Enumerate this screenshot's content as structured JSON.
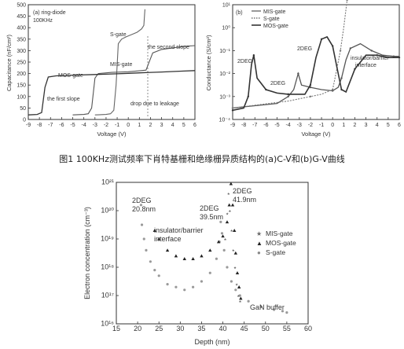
{
  "caption": "图1 100KHz测试频率下肖特基栅和绝缘栅异质结构的(a)C-V和(b)G-V曲线",
  "chart_data": [
    {
      "id": "a",
      "type": "line",
      "panel_label": "(a) ring-diode",
      "panel_sublabel": "100KHz",
      "xlabel": "Voltage (V)",
      "ylabel": "Capacitance (nF/cm²)",
      "xlim": [
        -9,
        6
      ],
      "ylim": [
        0,
        500
      ],
      "x_ticks": [
        "-9",
        "-8",
        "-7",
        "-6",
        "-5",
        "-4",
        "-3",
        "-2",
        "-1",
        "0",
        "1",
        "2",
        "3",
        "4",
        "5",
        "6"
      ],
      "y_ticks": [
        "0",
        "50",
        "100",
        "150",
        "200",
        "250",
        "300",
        "350",
        "400",
        "450",
        "500"
      ],
      "series": [
        {
          "name": "S-gate",
          "points": [
            [
              -3.0,
              20
            ],
            [
              -2.0,
              22
            ],
            [
              -1.6,
              25
            ],
            [
              -1.3,
              40
            ],
            [
              -1.1,
              150
            ],
            [
              -0.9,
              330
            ],
            [
              -0.6,
              350
            ],
            [
              -0.2,
              360
            ],
            [
              0.3,
              370
            ],
            [
              0.8,
              380
            ],
            [
              1.2,
              395
            ],
            [
              1.4,
              410
            ],
            [
              1.5,
              480
            ]
          ]
        },
        {
          "name": "MIS-gate",
          "points": [
            [
              -5.0,
              20
            ],
            [
              -4.0,
              22
            ],
            [
              -3.6,
              25
            ],
            [
              -3.3,
              50
            ],
            [
              -3.0,
              180
            ],
            [
              -2.7,
              200
            ],
            [
              -1.5,
              205
            ],
            [
              0,
              208
            ],
            [
              1.0,
              212
            ],
            [
              1.6,
              215
            ],
            [
              1.8,
              240
            ],
            [
              2.2,
              290
            ],
            [
              3,
              305
            ],
            [
              4,
              312
            ],
            [
              5,
              318
            ],
            [
              6,
              322
            ]
          ]
        },
        {
          "name": "MOS-gate",
          "points": [
            [
              -9,
              20
            ],
            [
              -8.2,
              22
            ],
            [
              -7.8,
              30
            ],
            [
              -7.5,
              140
            ],
            [
              -7.2,
              185
            ],
            [
              -6.5,
              190
            ],
            [
              -5,
              193
            ],
            [
              -3,
              196
            ],
            [
              -1,
              199
            ],
            [
              0,
              201
            ],
            [
              1,
              203
            ],
            [
              2,
              205
            ],
            [
              3,
              207
            ],
            [
              4,
              209
            ],
            [
              5,
              211
            ],
            [
              6,
              213
            ]
          ]
        }
      ],
      "annotations": [
        "S-gate",
        "MIS-gate",
        "MOS-gate",
        "the second slope",
        "the first slope",
        "drop due to leakage"
      ]
    },
    {
      "id": "b",
      "type": "line",
      "panel_label": "(b)",
      "xlabel": "Voltage (V)",
      "ylabel": "Conductance (S/cm²)",
      "yscale": "log",
      "xlim": [
        -9,
        6
      ],
      "ylim_exp": [
        -4,
        1
      ],
      "x_ticks": [
        "-9",
        "-8",
        "-7",
        "-6",
        "-5",
        "-4",
        "-3",
        "-2",
        "-1",
        "0",
        "1",
        "2",
        "3",
        "4",
        "5",
        "6"
      ],
      "y_ticks": [
        "10⁻⁴",
        "10⁻³",
        "10⁻²",
        "10⁻¹",
        "10⁰",
        "10¹"
      ],
      "legend": [
        "MIS-gate",
        "S-gate",
        "MOS-gate"
      ],
      "legend_position": "top-left",
      "series": [
        {
          "name": "MIS-gate",
          "points": [
            [
              -9,
              -3.5
            ],
            [
              -5,
              -3.3
            ],
            [
              -4,
              -3.0
            ],
            [
              -3.5,
              -2.7
            ],
            [
              -3.1,
              -2.0
            ],
            [
              -2.8,
              -2.5
            ],
            [
              -2,
              -2.6
            ],
            [
              -1,
              -2.7
            ],
            [
              0,
              -2.75
            ],
            [
              0.5,
              -2.6
            ],
            [
              0.8,
              -2.2
            ],
            [
              1.2,
              -1.4
            ],
            [
              1.6,
              -0.9
            ],
            [
              2.5,
              -0.7
            ],
            [
              3.5,
              -1.0
            ],
            [
              4.5,
              -1.2
            ],
            [
              5.5,
              -1.25
            ],
            [
              6,
              -1.25
            ]
          ]
        },
        {
          "name": "S-gate",
          "points": [
            [
              -9,
              -3.5
            ],
            [
              -4,
              -3.2
            ],
            [
              -2,
              -3.0
            ],
            [
              -1,
              -2.9
            ],
            [
              0,
              -2.7
            ],
            [
              0.3,
              -2.0
            ],
            [
              0.7,
              -1.0
            ],
            [
              1.0,
              0.0
            ],
            [
              1.3,
              1.2
            ],
            [
              1.5,
              1.8
            ]
          ]
        },
        {
          "name": "MOS-gate",
          "points": [
            [
              -9,
              -3.6
            ],
            [
              -8,
              -3.5
            ],
            [
              -7.6,
              -3.0
            ],
            [
              -7.3,
              -1.6
            ],
            [
              -7.1,
              -1.2
            ],
            [
              -6.8,
              -2.2
            ],
            [
              -6,
              -2.7
            ],
            [
              -5,
              -2.85
            ],
            [
              -4,
              -2.9
            ],
            [
              -2.5,
              -2.9
            ],
            [
              -2,
              -2.5
            ],
            [
              -1.5,
              -1.3
            ],
            [
              -1,
              -0.5
            ],
            [
              -0.5,
              -0.4
            ],
            [
              0,
              -0.8
            ],
            [
              0.5,
              -2.0
            ],
            [
              0.8,
              -2.7
            ],
            [
              1.2,
              -2.8
            ],
            [
              2,
              -1.8
            ],
            [
              3,
              -1.2
            ],
            [
              4,
              -1.2
            ],
            [
              5,
              -1.3
            ],
            [
              6,
              -1.3
            ]
          ]
        }
      ],
      "annotations": [
        "2DEG",
        "2DEG",
        "2DEG",
        "insulator/barrier",
        "interface"
      ]
    },
    {
      "id": "c",
      "type": "scatter",
      "xlabel": "Depth (nm)",
      "ylabel": "Electron concentration (cm⁻³)",
      "yscale": "log",
      "xlim": [
        15,
        60
      ],
      "ylim_exp": [
        16,
        21
      ],
      "x_ticks": [
        "15",
        "20",
        "25",
        "30",
        "35",
        "40",
        "45",
        "50",
        "55",
        "60"
      ],
      "y_ticks": [
        "10¹⁶",
        "10¹⁷",
        "10¹⁸",
        "10¹⁹",
        "10²⁰",
        "10²¹"
      ],
      "legend": [
        "MIS-gate",
        "MOS-gate",
        "S-gate"
      ],
      "legend_position": "right",
      "series": [
        {
          "name": "MIS-gate",
          "points": [
            [
              40.5,
              19.0
            ],
            [
              41,
              19.9
            ],
            [
              41.3,
              20.6
            ],
            [
              41.6,
              20.0
            ],
            [
              42,
              19.3
            ],
            [
              42.4,
              18.6
            ],
            [
              42.8,
              18.0
            ],
            [
              43.2,
              17.4
            ],
            [
              43.6,
              17.0
            ],
            [
              44,
              16.8
            ]
          ]
        },
        {
          "name": "MOS-gate",
          "points": [
            [
              24,
              19.3
            ],
            [
              25,
              19.0
            ],
            [
              27,
              18.6
            ],
            [
              29,
              18.4
            ],
            [
              31,
              18.3
            ],
            [
              33,
              18.3
            ],
            [
              35,
              18.4
            ],
            [
              37,
              18.6
            ],
            [
              39,
              18.9
            ],
            [
              40,
              19.1
            ],
            [
              41,
              19.6
            ],
            [
              41.5,
              20.2
            ],
            [
              41.9,
              20.95
            ],
            [
              42.3,
              20.2
            ],
            [
              42.7,
              19.3
            ],
            [
              43,
              18.5
            ],
            [
              43.4,
              17.8
            ],
            [
              43.8,
              17.3
            ],
            [
              44.2,
              16.9
            ]
          ]
        },
        {
          "name": "S-gate",
          "points": [
            [
              20.8,
              20.2
            ],
            [
              21,
              19.5
            ],
            [
              21.5,
              19.0
            ],
            [
              22,
              18.6
            ],
            [
              23,
              18.2
            ],
            [
              24,
              17.9
            ],
            [
              25,
              17.7
            ],
            [
              27,
              17.4
            ],
            [
              29,
              17.3
            ],
            [
              31,
              17.2
            ],
            [
              33,
              17.3
            ],
            [
              35,
              17.5
            ],
            [
              37,
              17.8
            ],
            [
              38.5,
              18.3
            ],
            [
              39.2,
              18.9
            ],
            [
              39.5,
              19.6
            ],
            [
              39.8,
              19.2
            ],
            [
              40.3,
              18.6
            ],
            [
              41,
              18.0
            ],
            [
              42,
              17.5
            ],
            [
              43,
              17.2
            ],
            [
              44,
              17.0
            ],
            [
              46,
              16.8
            ],
            [
              49,
              16.6
            ],
            [
              52,
              16.5
            ],
            [
              54,
              16.45
            ],
            [
              55,
              16.4
            ]
          ]
        }
      ],
      "annotations": [
        "2DEG",
        "20.8nm",
        "2DEG",
        "39.5nm",
        "2DEG",
        "41.9nm",
        "insulator/barrier",
        "interface",
        "GaN buffer"
      ]
    }
  ]
}
